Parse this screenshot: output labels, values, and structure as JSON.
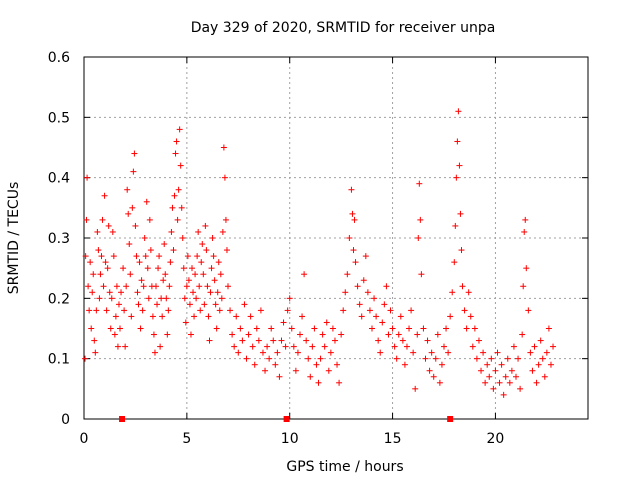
{
  "chart_data": {
    "type": "scatter",
    "title": "Day 329 of 2020, SRMTID for receiver unpa",
    "xlabel": "GPS time / hours",
    "ylabel": "SRMTID / TECUs",
    "xlim": [
      0,
      24.5
    ],
    "ylim": [
      0,
      0.6
    ],
    "x_ticks": [
      0,
      5,
      10,
      15,
      20
    ],
    "x_tick_labels": [
      "0",
      "5",
      "10",
      "15",
      "20"
    ],
    "y_ticks": [
      0,
      0.1,
      0.2,
      0.3,
      0.4,
      0.5,
      0.6
    ],
    "y_tick_labels": [
      "0",
      "0.1",
      "0.2",
      "0.3",
      "0.4",
      "0.5",
      "0.6"
    ],
    "grid": true,
    "marker": "plus",
    "color": "#ff0000",
    "zero_markers_x": [
      1.85,
      9.85,
      17.8
    ],
    "series": [
      {
        "name": "SRMTID",
        "points": [
          [
            0.05,
            0.1
          ],
          [
            0.08,
            0.27
          ],
          [
            0.12,
            0.33
          ],
          [
            0.15,
            0.4
          ],
          [
            0.2,
            0.22
          ],
          [
            0.25,
            0.18
          ],
          [
            0.3,
            0.26
          ],
          [
            0.35,
            0.15
          ],
          [
            0.4,
            0.21
          ],
          [
            0.45,
            0.24
          ],
          [
            0.5,
            0.13
          ],
          [
            0.55,
            0.11
          ],
          [
            0.6,
            0.18
          ],
          [
            0.65,
            0.31
          ],
          [
            0.7,
            0.28
          ],
          [
            0.75,
            0.2
          ],
          [
            0.8,
            0.24
          ],
          [
            0.85,
            0.27
          ],
          [
            0.9,
            0.33
          ],
          [
            0.95,
            0.22
          ],
          [
            1.0,
            0.37
          ],
          [
            1.05,
            0.26
          ],
          [
            1.1,
            0.18
          ],
          [
            1.15,
            0.25
          ],
          [
            1.2,
            0.32
          ],
          [
            1.25,
            0.21
          ],
          [
            1.3,
            0.15
          ],
          [
            1.35,
            0.2
          ],
          [
            1.4,
            0.31
          ],
          [
            1.45,
            0.27
          ],
          [
            1.5,
            0.14
          ],
          [
            1.55,
            0.17
          ],
          [
            1.6,
            0.22
          ],
          [
            1.65,
            0.12
          ],
          [
            1.7,
            0.19
          ],
          [
            1.75,
            0.15
          ],
          [
            1.8,
            0.21
          ],
          [
            1.9,
            0.25
          ],
          [
            1.95,
            0.18
          ],
          [
            2.0,
            0.12
          ],
          [
            2.05,
            0.22
          ],
          [
            2.1,
            0.38
          ],
          [
            2.15,
            0.34
          ],
          [
            2.2,
            0.29
          ],
          [
            2.25,
            0.24
          ],
          [
            2.3,
            0.17
          ],
          [
            2.35,
            0.35
          ],
          [
            2.4,
            0.41
          ],
          [
            2.45,
            0.44
          ],
          [
            2.5,
            0.32
          ],
          [
            2.55,
            0.27
          ],
          [
            2.6,
            0.21
          ],
          [
            2.65,
            0.19
          ],
          [
            2.7,
            0.26
          ],
          [
            2.75,
            0.15
          ],
          [
            2.8,
            0.23
          ],
          [
            2.85,
            0.18
          ],
          [
            2.9,
            0.22
          ],
          [
            2.95,
            0.3
          ],
          [
            3.0,
            0.27
          ],
          [
            3.05,
            0.36
          ],
          [
            3.1,
            0.25
          ],
          [
            3.15,
            0.2
          ],
          [
            3.2,
            0.33
          ],
          [
            3.25,
            0.28
          ],
          [
            3.3,
            0.22
          ],
          [
            3.35,
            0.17
          ],
          [
            3.4,
            0.14
          ],
          [
            3.45,
            0.11
          ],
          [
            3.5,
            0.22
          ],
          [
            3.55,
            0.19
          ],
          [
            3.6,
            0.25
          ],
          [
            3.65,
            0.27
          ],
          [
            3.7,
            0.12
          ],
          [
            3.75,
            0.2
          ],
          [
            3.8,
            0.17
          ],
          [
            3.85,
            0.23
          ],
          [
            3.9,
            0.29
          ],
          [
            3.95,
            0.24
          ],
          [
            4.0,
            0.2
          ],
          [
            4.05,
            0.14
          ],
          [
            4.1,
            0.18
          ],
          [
            4.15,
            0.22
          ],
          [
            4.2,
            0.26
          ],
          [
            4.25,
            0.31
          ],
          [
            4.3,
            0.35
          ],
          [
            4.35,
            0.28
          ],
          [
            4.4,
            0.37
          ],
          [
            4.45,
            0.44
          ],
          [
            4.5,
            0.46
          ],
          [
            4.55,
            0.33
          ],
          [
            4.6,
            0.38
          ],
          [
            4.65,
            0.48
          ],
          [
            4.7,
            0.42
          ],
          [
            4.75,
            0.35
          ],
          [
            4.8,
            0.3
          ],
          [
            4.85,
            0.25
          ],
          [
            4.9,
            0.2
          ],
          [
            4.95,
            0.16
          ],
          [
            5.0,
            0.22
          ],
          [
            5.05,
            0.27
          ],
          [
            5.1,
            0.23
          ],
          [
            5.15,
            0.19
          ],
          [
            5.2,
            0.14
          ],
          [
            5.25,
            0.25
          ],
          [
            5.3,
            0.21
          ],
          [
            5.35,
            0.17
          ],
          [
            5.4,
            0.24
          ],
          [
            5.45,
            0.2
          ],
          [
            5.5,
            0.27
          ],
          [
            5.55,
            0.31
          ],
          [
            5.6,
            0.22
          ],
          [
            5.65,
            0.18
          ],
          [
            5.7,
            0.26
          ],
          [
            5.75,
            0.29
          ],
          [
            5.8,
            0.24
          ],
          [
            5.85,
            0.19
          ],
          [
            5.9,
            0.32
          ],
          [
            5.95,
            0.28
          ],
          [
            6.0,
            0.22
          ],
          [
            6.05,
            0.17
          ],
          [
            6.1,
            0.13
          ],
          [
            6.15,
            0.21
          ],
          [
            6.2,
            0.25
          ],
          [
            6.25,
            0.3
          ],
          [
            6.3,
            0.27
          ],
          [
            6.35,
            0.23
          ],
          [
            6.4,
            0.19
          ],
          [
            6.45,
            0.15
          ],
          [
            6.5,
            0.21
          ],
          [
            6.55,
            0.26
          ],
          [
            6.6,
            0.18
          ],
          [
            6.65,
            0.24
          ],
          [
            6.7,
            0.2
          ],
          [
            6.75,
            0.31
          ],
          [
            6.8,
            0.45
          ],
          [
            6.85,
            0.4
          ],
          [
            6.9,
            0.33
          ],
          [
            6.95,
            0.28
          ],
          [
            7.0,
            0.22
          ],
          [
            7.1,
            0.18
          ],
          [
            7.2,
            0.14
          ],
          [
            7.3,
            0.12
          ],
          [
            7.4,
            0.17
          ],
          [
            7.5,
            0.11
          ],
          [
            7.6,
            0.15
          ],
          [
            7.7,
            0.13
          ],
          [
            7.8,
            0.19
          ],
          [
            7.9,
            0.1
          ],
          [
            8.0,
            0.14
          ],
          [
            8.1,
            0.17
          ],
          [
            8.2,
            0.12
          ],
          [
            8.3,
            0.09
          ],
          [
            8.4,
            0.15
          ],
          [
            8.5,
            0.13
          ],
          [
            8.6,
            0.18
          ],
          [
            8.7,
            0.11
          ],
          [
            8.8,
            0.08
          ],
          [
            8.9,
            0.12
          ],
          [
            9.0,
            0.1
          ],
          [
            9.1,
            0.15
          ],
          [
            9.2,
            0.13
          ],
          [
            9.3,
            0.09
          ],
          [
            9.4,
            0.11
          ],
          [
            9.5,
            0.07
          ],
          [
            9.6,
            0.13
          ],
          [
            9.7,
            0.16
          ],
          [
            9.8,
            0.12
          ],
          [
            9.9,
            0.18
          ],
          [
            10.0,
            0.2
          ],
          [
            10.1,
            0.15
          ],
          [
            10.2,
            0.12
          ],
          [
            10.3,
            0.08
          ],
          [
            10.4,
            0.11
          ],
          [
            10.5,
            0.14
          ],
          [
            10.6,
            0.17
          ],
          [
            10.7,
            0.24
          ],
          [
            10.8,
            0.13
          ],
          [
            10.9,
            0.1
          ],
          [
            11.0,
            0.07
          ],
          [
            11.1,
            0.12
          ],
          [
            11.2,
            0.15
          ],
          [
            11.3,
            0.09
          ],
          [
            11.4,
            0.06
          ],
          [
            11.5,
            0.1
          ],
          [
            11.6,
            0.14
          ],
          [
            11.7,
            0.12
          ],
          [
            11.8,
            0.16
          ],
          [
            11.9,
            0.08
          ],
          [
            12.0,
            0.11
          ],
          [
            12.1,
            0.15
          ],
          [
            12.2,
            0.13
          ],
          [
            12.3,
            0.09
          ],
          [
            12.4,
            0.06
          ],
          [
            12.5,
            0.14
          ],
          [
            12.6,
            0.18
          ],
          [
            12.7,
            0.21
          ],
          [
            12.8,
            0.24
          ],
          [
            12.9,
            0.3
          ],
          [
            13.0,
            0.38
          ],
          [
            13.05,
            0.34
          ],
          [
            13.1,
            0.28
          ],
          [
            13.15,
            0.33
          ],
          [
            13.2,
            0.26
          ],
          [
            13.3,
            0.22
          ],
          [
            13.4,
            0.19
          ],
          [
            13.5,
            0.17
          ],
          [
            13.6,
            0.23
          ],
          [
            13.7,
            0.27
          ],
          [
            13.8,
            0.21
          ],
          [
            13.9,
            0.18
          ],
          [
            14.0,
            0.15
          ],
          [
            14.1,
            0.2
          ],
          [
            14.2,
            0.17
          ],
          [
            14.3,
            0.13
          ],
          [
            14.4,
            0.11
          ],
          [
            14.5,
            0.16
          ],
          [
            14.6,
            0.19
          ],
          [
            14.7,
            0.22
          ],
          [
            14.8,
            0.14
          ],
          [
            14.9,
            0.18
          ],
          [
            15.0,
            0.15
          ],
          [
            15.1,
            0.12
          ],
          [
            15.2,
            0.1
          ],
          [
            15.3,
            0.14
          ],
          [
            15.4,
            0.17
          ],
          [
            15.5,
            0.13
          ],
          [
            15.6,
            0.09
          ],
          [
            15.7,
            0.12
          ],
          [
            15.8,
            0.15
          ],
          [
            15.9,
            0.18
          ],
          [
            16.0,
            0.11
          ],
          [
            16.1,
            0.05
          ],
          [
            16.2,
            0.14
          ],
          [
            16.25,
            0.3
          ],
          [
            16.3,
            0.39
          ],
          [
            16.35,
            0.33
          ],
          [
            16.4,
            0.24
          ],
          [
            16.5,
            0.15
          ],
          [
            16.6,
            0.1
          ],
          [
            16.7,
            0.13
          ],
          [
            16.8,
            0.08
          ],
          [
            16.9,
            0.11
          ],
          [
            17.0,
            0.07
          ],
          [
            17.1,
            0.1
          ],
          [
            17.2,
            0.14
          ],
          [
            17.3,
            0.06
          ],
          [
            17.4,
            0.09
          ],
          [
            17.5,
            0.12
          ],
          [
            17.6,
            0.15
          ],
          [
            17.7,
            0.11
          ],
          [
            17.8,
            0.17
          ],
          [
            17.9,
            0.21
          ],
          [
            18.0,
            0.26
          ],
          [
            18.05,
            0.32
          ],
          [
            18.1,
            0.4
          ],
          [
            18.15,
            0.46
          ],
          [
            18.2,
            0.51
          ],
          [
            18.25,
            0.42
          ],
          [
            18.3,
            0.34
          ],
          [
            18.35,
            0.28
          ],
          [
            18.4,
            0.22
          ],
          [
            18.5,
            0.18
          ],
          [
            18.6,
            0.15
          ],
          [
            18.7,
            0.21
          ],
          [
            18.8,
            0.17
          ],
          [
            18.9,
            0.12
          ],
          [
            19.0,
            0.15
          ],
          [
            19.1,
            0.1
          ],
          [
            19.2,
            0.13
          ],
          [
            19.3,
            0.08
          ],
          [
            19.4,
            0.11
          ],
          [
            19.5,
            0.06
          ],
          [
            19.6,
            0.09
          ],
          [
            19.7,
            0.07
          ],
          [
            19.8,
            0.1
          ],
          [
            19.9,
            0.05
          ],
          [
            20.0,
            0.08
          ],
          [
            20.1,
            0.11
          ],
          [
            20.2,
            0.06
          ],
          [
            20.3,
            0.09
          ],
          [
            20.4,
            0.04
          ],
          [
            20.5,
            0.07
          ],
          [
            20.6,
            0.1
          ],
          [
            20.7,
            0.06
          ],
          [
            20.8,
            0.08
          ],
          [
            20.9,
            0.12
          ],
          [
            21.0,
            0.07
          ],
          [
            21.1,
            0.1
          ],
          [
            21.2,
            0.05
          ],
          [
            21.3,
            0.14
          ],
          [
            21.35,
            0.22
          ],
          [
            21.4,
            0.31
          ],
          [
            21.45,
            0.33
          ],
          [
            21.5,
            0.25
          ],
          [
            21.6,
            0.18
          ],
          [
            21.7,
            0.11
          ],
          [
            21.8,
            0.08
          ],
          [
            21.9,
            0.12
          ],
          [
            22.0,
            0.06
          ],
          [
            22.1,
            0.09
          ],
          [
            22.2,
            0.13
          ],
          [
            22.3,
            0.1
          ],
          [
            22.4,
            0.07
          ],
          [
            22.5,
            0.11
          ],
          [
            22.6,
            0.15
          ],
          [
            22.7,
            0.09
          ],
          [
            22.8,
            0.12
          ]
        ]
      }
    ]
  }
}
